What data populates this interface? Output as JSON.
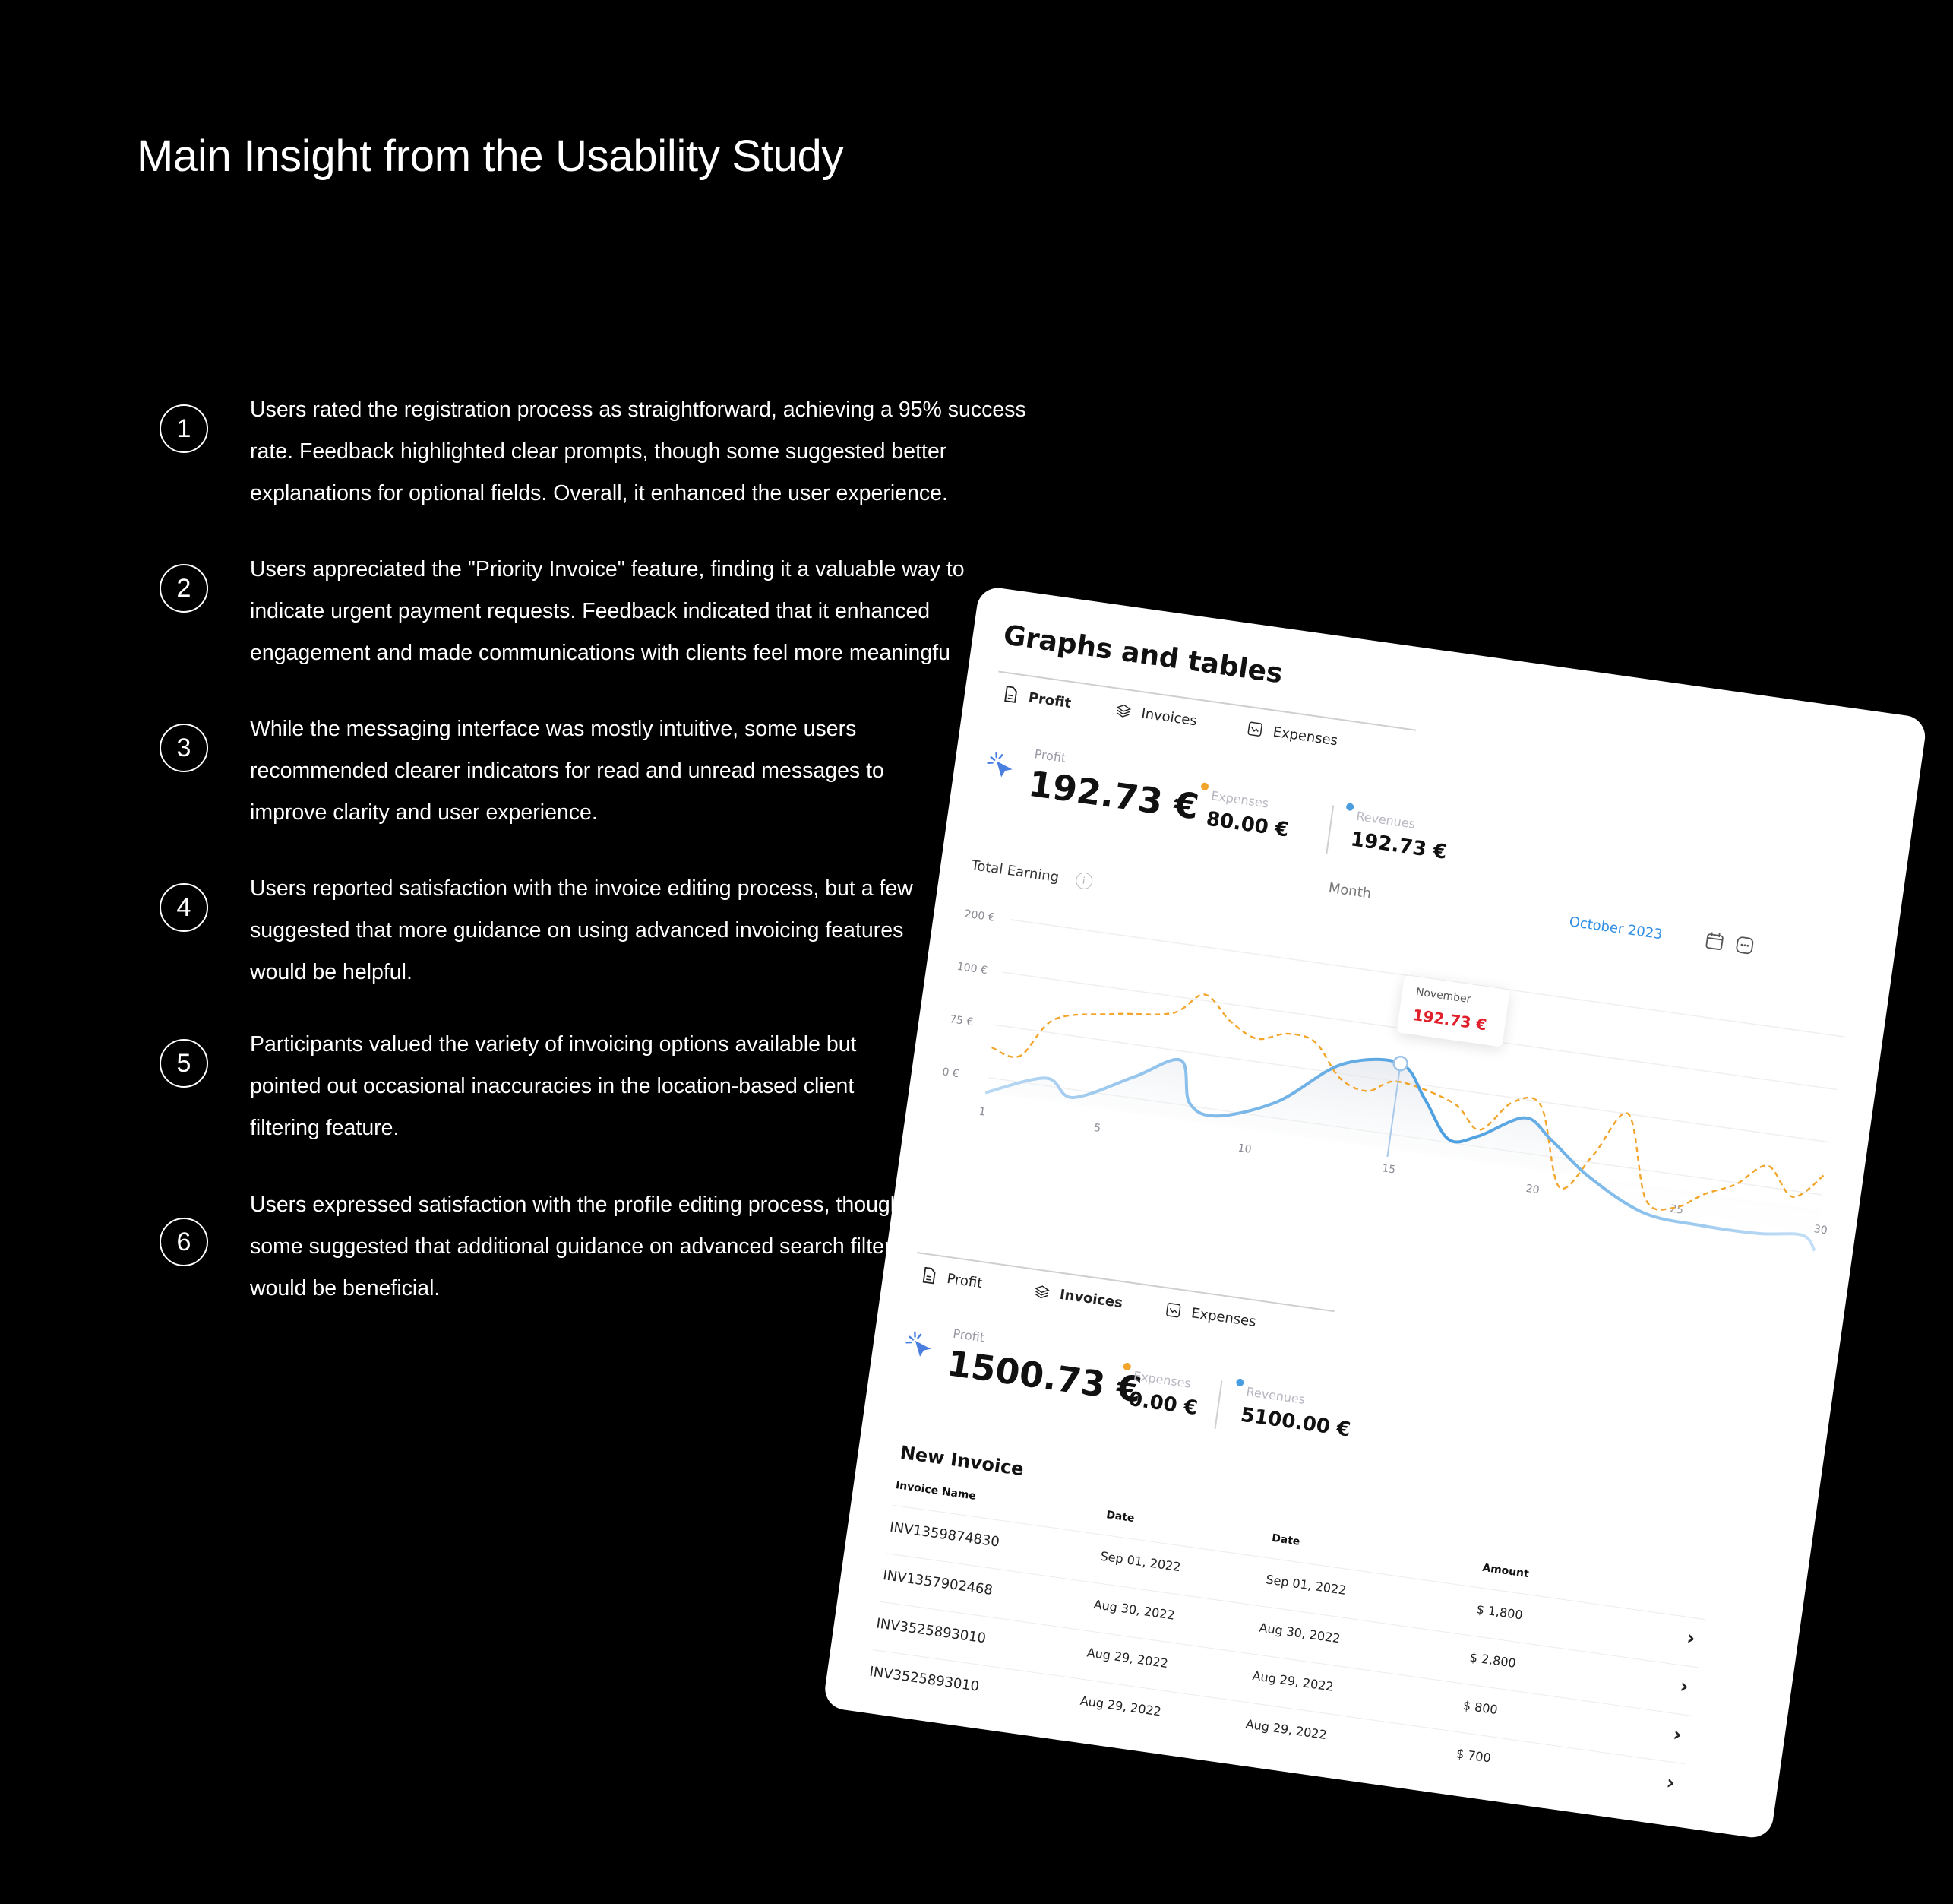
{
  "page": {
    "title": "Main Insight from the Usability Study"
  },
  "insights": [
    {
      "number": "1",
      "lines": [
        "Users rated the registration process as straightforward, achieving a 95% success",
        "rate. Feedback highlighted clear prompts, though some suggested better",
        "explanations for optional fields. Overall, it enhanced the user experience."
      ]
    },
    {
      "number": "2",
      "lines": [
        "Users appreciated the \"Priority Invoice\" feature, finding it a valuable way to",
        "indicate urgent payment requests. Feedback indicated that it enhanced",
        "engagement and made communications with clients feel more meaningfu"
      ]
    },
    {
      "number": "3",
      "lines": [
        "While the messaging interface was mostly intuitive, some users",
        "recommended clearer indicators for read and unread messages to",
        "improve clarity and user experience."
      ]
    },
    {
      "number": "4",
      "lines": [
        "Users reported satisfaction with the invoice editing process, but a few",
        "suggested that more guidance on using advanced invoicing features",
        "would be helpful."
      ]
    },
    {
      "number": "5",
      "lines": [
        "Participants valued the variety of invoicing options available but",
        "pointed out occasional inaccuracies in the location-based client",
        "filtering feature."
      ]
    },
    {
      "number": "6",
      "lines": [
        "Users expressed satisfaction with the profile editing process, though",
        "some suggested that additional guidance on advanced search filters",
        "would be beneficial."
      ]
    }
  ],
  "card": {
    "title": "Graphs and tables",
    "tabs": [
      "Profit",
      "Invoices",
      "Expenses"
    ],
    "section1": {
      "active_tab": "Profit",
      "profit_label": "Profit",
      "profit_value": "192.73 €",
      "expenses_label": "Expenses",
      "expenses_value": "80.00 €",
      "revenues_label": "Revenues",
      "revenues_value": "192.73 €",
      "total_earning_label": "Total Earning",
      "month_label": "Month",
      "date_link": "October 2023",
      "tooltip_month": "November",
      "tooltip_value": "192.73 €"
    },
    "section2": {
      "active_tab": "Invoices",
      "profit_label": "Profit",
      "profit_value": "1500.73 €",
      "expenses_label": "Expenses",
      "expenses_value": "0.00 €",
      "revenues_label": "Revenues",
      "revenues_value": "5100.00 €",
      "table_title": "New Invoice",
      "columns": [
        "Invoice Name",
        "Date",
        "Date",
        "Amount"
      ],
      "rows": [
        {
          "name": "INV1359874830",
          "date1": "Sep 01, 2022",
          "date2": "Sep 01, 2022",
          "amount": "$ 1,800"
        },
        {
          "name": "INV1357902468",
          "date1": "Aug 30, 2022",
          "date2": "Aug 30, 2022",
          "amount": "$ 2,800"
        },
        {
          "name": "INV3525893010",
          "date1": "Aug 29, 2022",
          "date2": "Aug 29, 2022",
          "amount": "$ 800"
        },
        {
          "name": "INV3525893010",
          "date1": "Aug 29, 2022",
          "date2": "Aug 29, 2022",
          "amount": "$ 700"
        }
      ]
    },
    "colors": {
      "revenues": "#4a9ee0",
      "expenses": "#f2a52a",
      "tooltip_value": "#e0202a",
      "link": "#2f8fe5"
    }
  },
  "chart_data": {
    "type": "line",
    "xlabel": "Month",
    "ylabel": "",
    "x_ticks": [
      "1",
      "5",
      "10",
      "15",
      "20",
      "25",
      "30"
    ],
    "y_ticks": [
      "200 €",
      "100 €",
      "75 €",
      "0 €"
    ],
    "series": [
      {
        "name": "Revenues",
        "x": [
          1,
          3,
          4,
          6,
          7.5,
          8,
          9,
          11,
          13,
          15,
          16,
          17,
          18,
          19.5,
          20.5,
          22,
          24,
          26,
          28,
          29.5,
          30
        ],
        "y": [
          10,
          35,
          18,
          50,
          75,
          30,
          20,
          45,
          95,
          105,
          70,
          30,
          38,
          65,
          45,
          10,
          -20,
          -25,
          -25,
          -20,
          -35
        ]
      },
      {
        "name": "Expenses",
        "x": [
          1,
          2,
          3,
          5,
          7,
          8,
          9,
          10,
          11,
          12,
          13,
          14,
          15,
          17,
          18,
          19,
          20,
          21,
          22,
          23,
          24,
          25,
          26,
          27,
          28,
          29,
          30
        ],
        "y": [
          60,
          55,
          100,
          115,
          125,
          150,
          125,
          110,
          120,
          115,
          80,
          70,
          85,
          70,
          45,
          80,
          80,
          -5,
          35,
          85,
          -5,
          -10,
          10,
          25,
          50,
          20,
          50
        ]
      }
    ],
    "annotations": [
      {
        "x": 15,
        "label": "November",
        "value": "192.73 €"
      }
    ]
  }
}
